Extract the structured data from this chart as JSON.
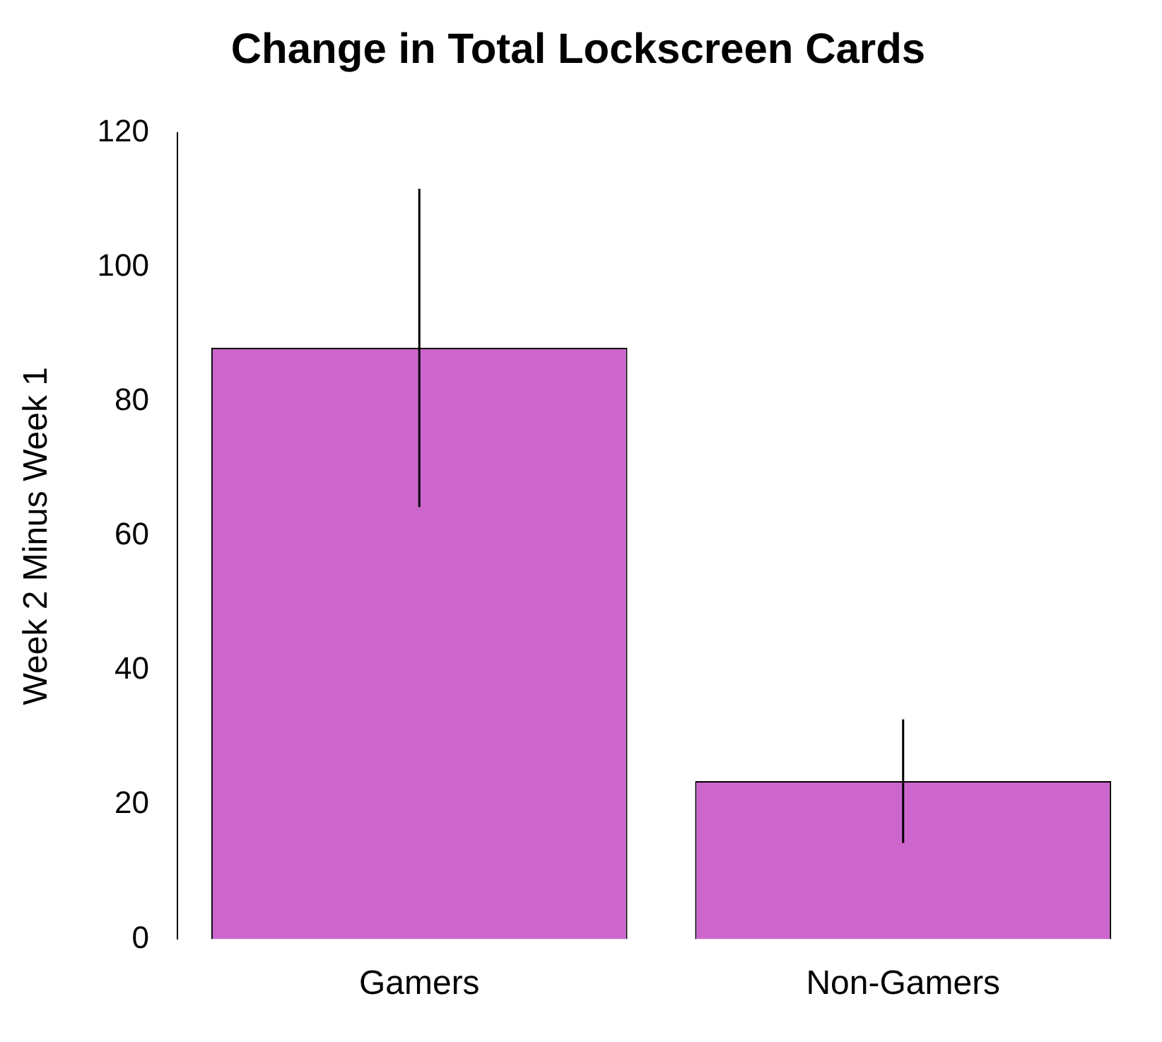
{
  "chart_data": {
    "type": "bar",
    "title": "Change in Total Lockscreen Cards",
    "ylabel": "Week 2 Minus Week 1",
    "categories": [
      "Gamers",
      "Non-Gamers"
    ],
    "values": [
      88,
      23.5
    ],
    "errors": [
      23.7,
      9.2
    ],
    "color": "#cc66cc",
    "ylim": [
      0,
      120
    ],
    "yticks": [
      0,
      20,
      40,
      60,
      80,
      100,
      120
    ],
    "grid": false,
    "legend": false
  }
}
